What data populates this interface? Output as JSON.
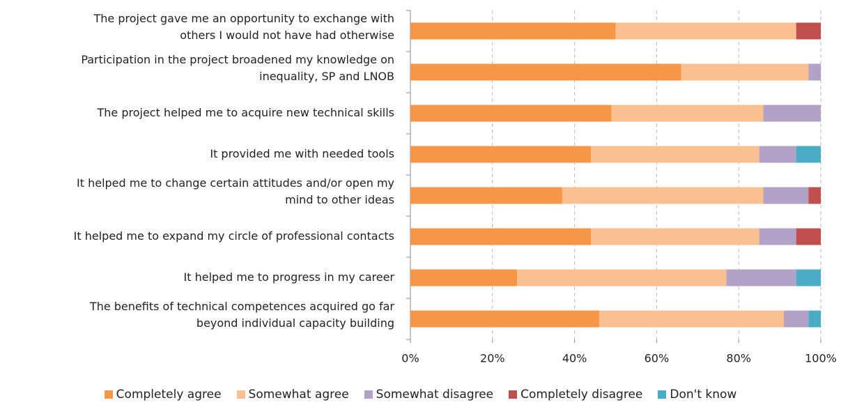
{
  "chart_data": {
    "type": "stacked-barh",
    "categories": [
      [
        "The project gave me an opportunity to exchange with",
        "others I would not have had otherwise"
      ],
      [
        "Participation in the project broadened my knowledge on",
        "inequality, SP and LNOB"
      ],
      [
        "The project helped me to acquire new technical skills"
      ],
      [
        "It provided me with needed tools"
      ],
      [
        "It helped me to change certain attitudes and/or open my",
        "mind to other ideas"
      ],
      [
        "It helped me to expand my circle of professional contacts"
      ],
      [
        "It helped me to progress in my career"
      ],
      [
        "The benefits of technical competences acquired go far",
        "beyond individual capacity building"
      ]
    ],
    "series": [
      {
        "name": "Completely agree",
        "color": "#f79646",
        "values": [
          50,
          66,
          49,
          44,
          37,
          44,
          26,
          46
        ]
      },
      {
        "name": "Somewhat agree",
        "color": "#fac090",
        "values": [
          44,
          31,
          37,
          41,
          49,
          41,
          51,
          45
        ]
      },
      {
        "name": "Somewhat disagree",
        "color": "#b3a2c7",
        "values": [
          0,
          3,
          14,
          9,
          11,
          9,
          17,
          6
        ]
      },
      {
        "name": "Completely disagree",
        "color": "#c0504d",
        "values": [
          6,
          0,
          0,
          0,
          3,
          6,
          0,
          0
        ]
      },
      {
        "name": "Don't know",
        "color": "#4bacc6",
        "values": [
          0,
          0,
          0,
          6,
          0,
          0,
          6,
          3
        ]
      }
    ],
    "xlim": [
      0,
      100
    ],
    "xticks": [
      {
        "value": 0,
        "label": "0%"
      },
      {
        "value": 20,
        "label": "20%"
      },
      {
        "value": 40,
        "label": "40%"
      },
      {
        "value": 60,
        "label": "60%"
      },
      {
        "value": 80,
        "label": "80%"
      },
      {
        "value": 100,
        "label": "100%"
      }
    ],
    "grid": true,
    "legend": "bottom"
  }
}
